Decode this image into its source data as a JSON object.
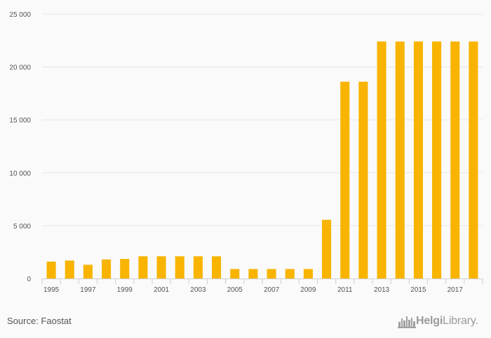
{
  "chart_data": {
    "type": "bar",
    "categories": [
      "1995",
      "1996",
      "1997",
      "1998",
      "1999",
      "2000",
      "2001",
      "2002",
      "2003",
      "2004",
      "2005",
      "2006",
      "2007",
      "2008",
      "2009",
      "2010",
      "2011",
      "2012",
      "2013",
      "2014",
      "2015",
      "2016",
      "2017",
      "2018"
    ],
    "x_tick_labels": [
      "1995",
      "1997",
      "1999",
      "2001",
      "2003",
      "2005",
      "2007",
      "2009",
      "2011",
      "2013",
      "2015",
      "2017"
    ],
    "values": [
      1600,
      1700,
      1300,
      1800,
      1850,
      2100,
      2100,
      2100,
      2100,
      2100,
      900,
      900,
      900,
      900,
      900,
      5550,
      18600,
      18600,
      22400,
      22400,
      22400,
      22400,
      22400,
      22400
    ],
    "y_ticks": [
      0,
      5000,
      10000,
      15000,
      20000,
      25000
    ],
    "y_tick_labels": [
      "0",
      "5 000",
      "10 000",
      "15 000",
      "20 000",
      "25 000"
    ],
    "ylim": [
      0,
      25000
    ],
    "title": "",
    "xlabel": "",
    "ylabel": "",
    "grid": true,
    "bar_color": "#f8b400"
  },
  "footer": {
    "source": "Source: Faostat",
    "brand_part1": "Helgi",
    "brand_part2": "Library",
    "brand_dot": "."
  }
}
